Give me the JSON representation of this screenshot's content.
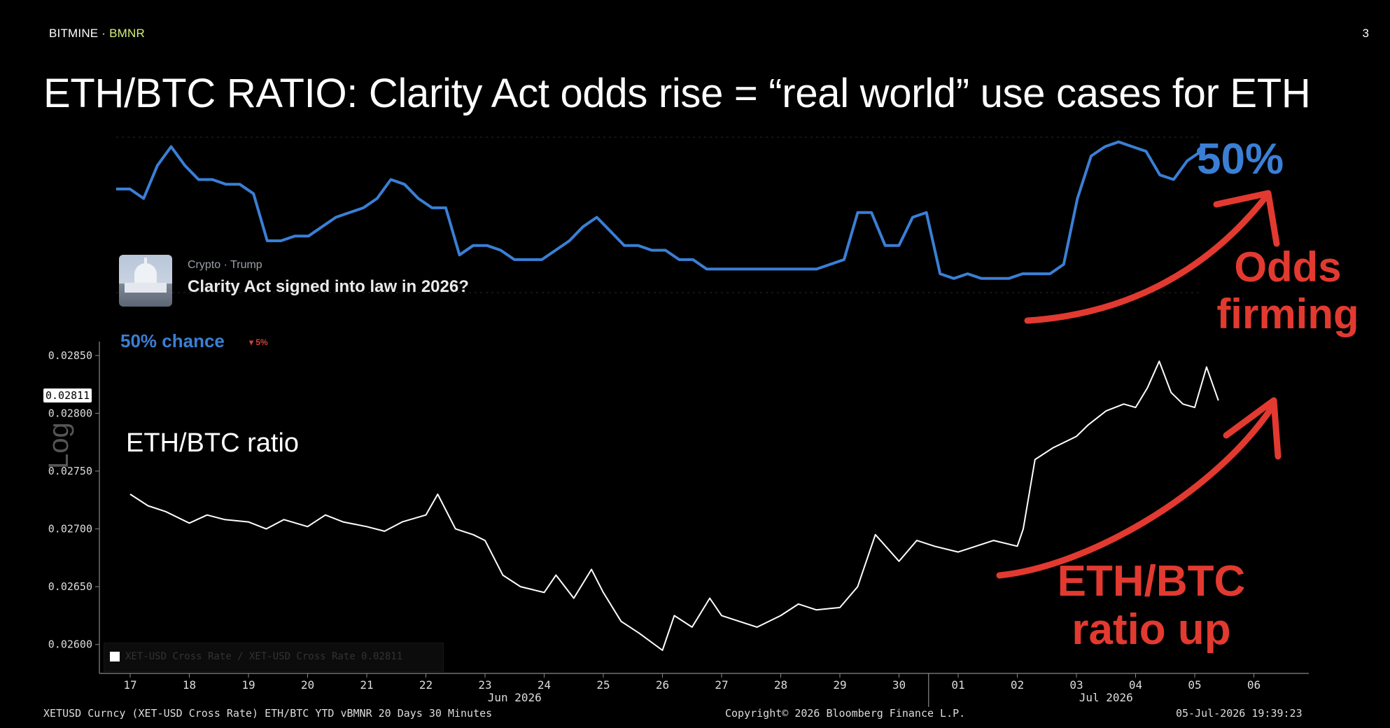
{
  "header": {
    "brand_name": "BITMINE",
    "brand_sep": " · ",
    "brand_ticker": "BMNR",
    "page_number": "3",
    "title": "ETH/BTC RATIO: Clarity Act odds rise = “real world” use cases for ETH"
  },
  "odds_panel": {
    "big_value": "50%",
    "market_category": "Crypto · Trump",
    "market_question": "Clarity Act signed into law in 2026?",
    "chance_text": "50% chance",
    "chance_delta": "▾ 5%",
    "line_color": "#3a7fd5"
  },
  "annotations": {
    "odds_note": "Odds firming",
    "ratio_note": "ETH/BTC ratio up",
    "color": "#e23a30"
  },
  "chart_data": [
    {
      "type": "line",
      "title": "Clarity Act signed into law in 2026?",
      "series": [
        {
          "values": [
            42,
            42,
            40,
            47,
            51,
            47,
            44,
            44,
            43,
            43,
            41,
            31,
            31,
            32,
            32,
            34,
            36,
            37,
            38,
            40,
            44,
            43,
            40,
            38,
            38,
            28,
            30,
            30,
            29,
            27,
            27,
            27,
            29,
            31,
            34,
            36,
            33,
            30,
            30,
            29,
            29,
            27,
            27,
            25,
            25,
            25,
            25,
            25,
            25,
            25,
            25,
            25,
            26,
            27,
            37,
            37,
            30,
            30,
            36,
            37,
            24,
            23,
            24,
            23,
            23,
            23,
            24,
            24,
            24,
            26,
            40,
            49,
            51,
            52,
            51,
            50,
            45,
            44,
            48,
            50
          ]
        }
      ],
      "x_range": [
        "17 Jun 2026",
        "05 Jul 2026"
      ],
      "color": "#3a7fd5"
    },
    {
      "type": "line",
      "xlabel": "",
      "ylabel": "Log",
      "series_label": "ETH/BTC ratio",
      "x_ticks": [
        "17",
        "18",
        "19",
        "20",
        "21",
        "22",
        "23",
        "24",
        "25",
        "26",
        "27",
        "28",
        "29",
        "30",
        "01",
        "02",
        "03",
        "04",
        "05",
        "06"
      ],
      "x_month_labels": [
        "Jun 2026",
        "Jul 2026"
      ],
      "y_ticks": [
        "0.02600",
        "0.02650",
        "0.02700",
        "0.02750",
        "0.02800",
        "0.02850"
      ],
      "ylim": [
        0.02575,
        0.02862
      ],
      "last_value": "0.02811",
      "series": [
        {
          "name": "XET-USD Cross Rate / XET-USD Cross Rate",
          "x": [
            17.0,
            17.3,
            17.6,
            18.0,
            18.3,
            18.6,
            19.0,
            19.3,
            19.6,
            20.0,
            20.3,
            20.6,
            21.0,
            21.3,
            21.6,
            22.0,
            22.2,
            22.5,
            22.8,
            23.0,
            23.3,
            23.6,
            24.0,
            24.2,
            24.5,
            24.8,
            25.0,
            25.3,
            25.6,
            26.0,
            26.2,
            26.5,
            26.8,
            27.0,
            27.3,
            27.6,
            28.0,
            28.3,
            28.6,
            29.0,
            29.3,
            29.6,
            30.0,
            30.3,
            30.6,
            31.0,
            31.3,
            31.6,
            32.0,
            32.1,
            32.3,
            32.6,
            33.0,
            33.2,
            33.5,
            33.8,
            34.0,
            34.2,
            34.4,
            34.6,
            34.8,
            35.0,
            35.2,
            35.4
          ],
          "values": [
            0.0273,
            0.0272,
            0.02715,
            0.02705,
            0.02712,
            0.02708,
            0.02706,
            0.027,
            0.02708,
            0.02702,
            0.02712,
            0.02706,
            0.02702,
            0.02698,
            0.02706,
            0.02712,
            0.0273,
            0.027,
            0.02695,
            0.0269,
            0.0266,
            0.0265,
            0.02645,
            0.0266,
            0.0264,
            0.02665,
            0.02645,
            0.0262,
            0.0261,
            0.02595,
            0.02625,
            0.02615,
            0.0264,
            0.02625,
            0.0262,
            0.02615,
            0.02625,
            0.02635,
            0.0263,
            0.02632,
            0.0265,
            0.02695,
            0.02672,
            0.0269,
            0.02685,
            0.0268,
            0.02685,
            0.0269,
            0.02685,
            0.027,
            0.0276,
            0.0277,
            0.0278,
            0.0279,
            0.02802,
            0.02808,
            0.02805,
            0.02822,
            0.02845,
            0.02818,
            0.02808,
            0.02805,
            0.0284,
            0.02811
          ],
          "color": "#ffffff"
        }
      ]
    }
  ],
  "legend": {
    "text": "XET-USD Cross Rate / XET-USD Cross Rate 0.02811"
  },
  "footer": {
    "left": "XETUSD Curncy (XET-USD Cross Rate) ETH/BTC YTD vBMNR 20 Days 30 Minutes",
    "center": "Copyright© 2026 Bloomberg Finance L.P.",
    "right": "05-Jul-2026 19:39:23"
  }
}
